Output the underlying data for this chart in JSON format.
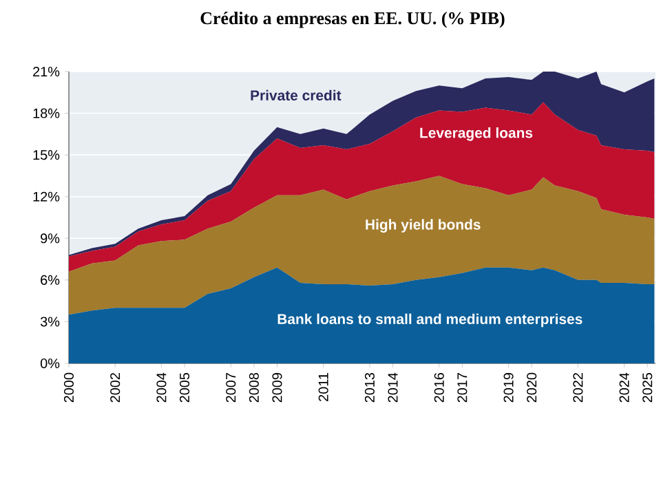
{
  "chart_data": {
    "type": "area",
    "stacked": true,
    "title": "Crédito a empresas en EE. UU. (% PIB)",
    "x": [
      2000,
      2001,
      2002,
      2003,
      2004,
      2005,
      2006,
      2007,
      2008,
      2009,
      2010,
      2011,
      2012,
      2013,
      2014,
      2015,
      2016,
      2017,
      2018,
      2019,
      2020,
      2020.5,
      2021,
      2022,
      2022.8,
      2023,
      2024,
      2025,
      2025.3
    ],
    "series": [
      {
        "name": "Bank loans to small and medium enterprises",
        "color": "#0b5f9a",
        "values": [
          3.5,
          3.8,
          4.0,
          4.0,
          4.0,
          4.0,
          5.0,
          5.4,
          6.2,
          6.9,
          5.8,
          5.7,
          5.7,
          5.6,
          5.7,
          6.0,
          6.2,
          6.5,
          6.9,
          6.9,
          6.7,
          6.9,
          6.7,
          6.0,
          6.0,
          5.8,
          5.8,
          5.7,
          5.7
        ]
      },
      {
        "name": "High yield bonds",
        "color": "#a27b2c",
        "values": [
          3.1,
          3.4,
          3.4,
          4.5,
          4.8,
          4.9,
          4.7,
          4.8,
          5.0,
          5.2,
          6.3,
          6.8,
          6.1,
          6.8,
          7.1,
          7.1,
          7.3,
          6.4,
          5.7,
          5.2,
          5.8,
          6.5,
          6.1,
          6.4,
          5.9,
          5.3,
          4.9,
          4.8,
          4.7
        ]
      },
      {
        "name": "Leveraged loans",
        "color": "#c0102e",
        "values": [
          1.1,
          0.9,
          1.0,
          1.0,
          1.2,
          1.4,
          2.0,
          2.2,
          3.5,
          4.1,
          3.4,
          3.2,
          3.6,
          3.4,
          3.9,
          4.6,
          4.7,
          5.2,
          5.8,
          6.1,
          5.4,
          5.4,
          5.1,
          4.4,
          4.5,
          4.6,
          4.7,
          4.8,
          4.8
        ]
      },
      {
        "name": "Private credit",
        "color": "#2a2a5e",
        "values": [
          0.1,
          0.2,
          0.2,
          0.2,
          0.3,
          0.3,
          0.4,
          0.5,
          0.6,
          0.8,
          1.0,
          1.2,
          1.1,
          2.1,
          2.2,
          1.9,
          1.8,
          1.7,
          2.1,
          2.4,
          2.5,
          2.2,
          3.1,
          3.7,
          4.6,
          4.4,
          4.1,
          5.0,
          5.3
        ]
      }
    ],
    "xlim": [
      2000,
      2025.35
    ],
    "xticks": [
      2000,
      2002,
      2004,
      2005,
      2007,
      2008,
      2009,
      2011,
      2013,
      2014,
      2016,
      2017,
      2019,
      2020,
      2022,
      2024,
      2025
    ],
    "ylim": [
      0,
      21
    ],
    "yticks": [
      {
        "value": 0,
        "label": "0%"
      },
      {
        "value": 3,
        "label": "3%"
      },
      {
        "value": 6,
        "label": "6%"
      },
      {
        "value": 9,
        "label": "9%"
      },
      {
        "value": 12,
        "label": "12%"
      },
      {
        "value": 15,
        "label": "15%"
      },
      {
        "value": 18,
        "label": "18%"
      },
      {
        "value": 21,
        "label": "21%"
      }
    ],
    "grid": "y"
  }
}
